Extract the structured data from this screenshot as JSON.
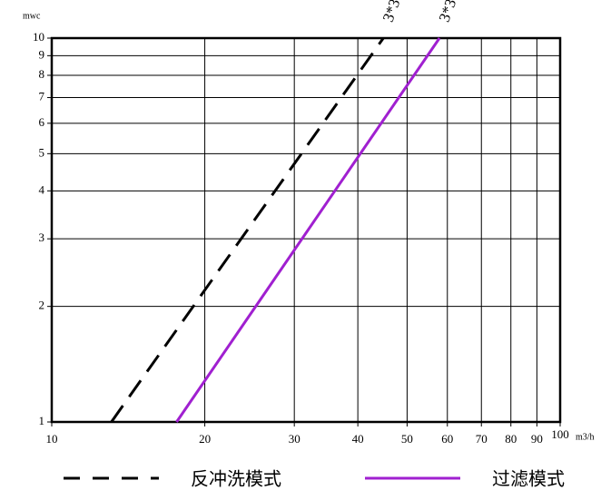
{
  "chart_data": {
    "type": "line",
    "x_label": "m3/h",
    "y_label": "mwc",
    "log_x": true,
    "log_y": true,
    "grid": true,
    "xlim": [
      10,
      100
    ],
    "ylim": [
      1,
      10
    ],
    "xticks": [
      10,
      20,
      30,
      40,
      50,
      60,
      70,
      80,
      90,
      100
    ],
    "yticks": [
      1,
      2,
      3,
      4,
      5,
      6,
      7,
      8,
      9,
      10
    ],
    "series": [
      {
        "name": "反冲洗模式",
        "color": "#000000",
        "dashed": true,
        "x": [
          13.1,
          44.9
        ],
        "values": [
          1,
          10
        ],
        "annotation": "3*3"
      },
      {
        "name": "过滤模式",
        "color": "#a020d0",
        "dashed": false,
        "x": [
          17.6,
          57.9
        ],
        "values": [
          1,
          10
        ],
        "annotation": "3*3"
      }
    ]
  }
}
